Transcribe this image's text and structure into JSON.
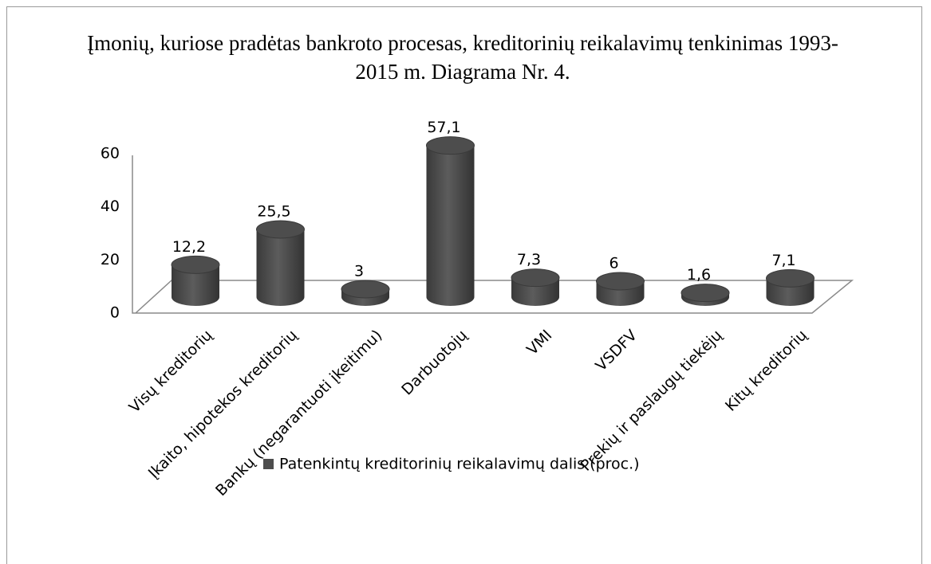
{
  "chart_data": {
    "type": "bar3d",
    "title": "Įmonių, kuriose pradėtas bankroto procesas, kreditorinių reikalavimų tenkinimas 1993-2015 m. Diagrama Nr. 4.",
    "categories": [
      "Visų kreditorių",
      "Įkaito, hipotekos kreditorių",
      "Bankų (negarantuoti įkeitimu)",
      "Darbuotojų",
      "VMI",
      "VSDFV",
      "Prekių ir paslaugų tiekėjų",
      "Kitų kreditorių"
    ],
    "series": [
      {
        "name": "Patenkintų kreditorinių reikalavimų dalis (proc.)",
        "color": "#4d4d4d",
        "values": [
          12.2,
          25.5,
          3,
          57.1,
          7.3,
          6,
          1.6,
          7.1
        ],
        "value_labels": [
          "12,2",
          "25,5",
          "3",
          "57,1",
          "7,3",
          "6",
          "1,6",
          "7,1"
        ]
      }
    ],
    "ylim": [
      0,
      60
    ],
    "yticks": [
      0,
      20,
      40,
      60
    ],
    "legend": "bottom"
  }
}
